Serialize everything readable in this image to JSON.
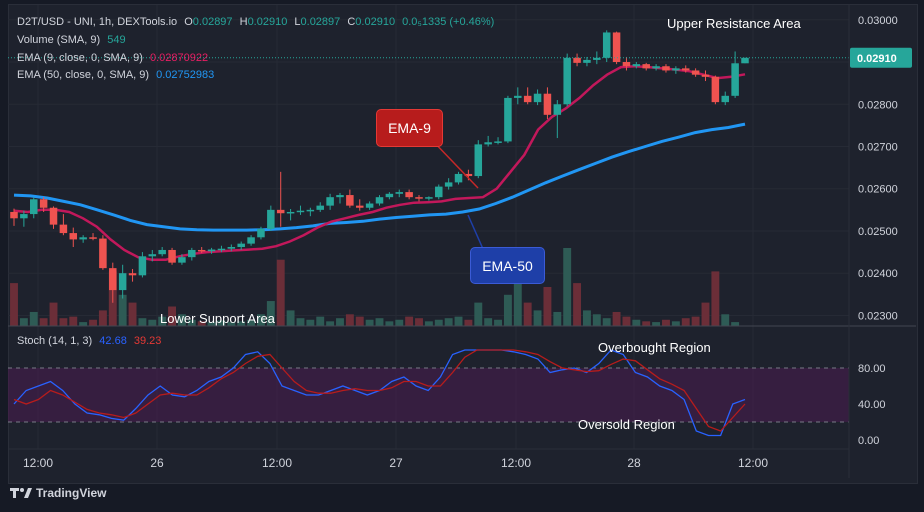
{
  "header": {
    "symbol": "D2T/USD - UNI, 1h, DEXTools.io",
    "o_label": "O",
    "o_value": "0.02897",
    "h_label": "H",
    "h_value": "0.02910",
    "l_label": "L",
    "l_value": "0.02897",
    "c_label": "C",
    "c_value": "0.02910",
    "change": "0.0₅1335 (+0.46%)"
  },
  "indicators": {
    "volume_label": "Volume (SMA, 9)",
    "volume_value": "549",
    "ema9_label": "EMA (9, close, 0, SMA, 9)",
    "ema9_value": "0.02870922",
    "ema50_label": "EMA (50, close, 0, SMA, 9)",
    "ema50_value": "0.02752983",
    "stoch_label": "Stoch (14, 1, 3)",
    "stoch_k": "42.68",
    "stoch_d": "39.23"
  },
  "annotations": {
    "upper": "Upper Resistance Area",
    "lower": "Lower Support Area",
    "ema9_tag": "EMA-9",
    "ema50_tag": "EMA-50",
    "overbought": "Overbought Region",
    "oversold": "Oversold Region"
  },
  "price_axis": [
    "0.03000",
    "0.02900",
    "0.02800",
    "0.02700",
    "0.02600",
    "0.02500",
    "0.02400",
    "0.02300"
  ],
  "price_badge": "0.02910",
  "stoch_axis": [
    "80.00",
    "40.00",
    "0.00"
  ],
  "time_axis": [
    "12:00",
    "26",
    "12:00",
    "27",
    "12:00",
    "28",
    "12:00"
  ],
  "brand": "TradingView",
  "colors": {
    "up": "#26a69a",
    "down": "#ef5350",
    "ema9": "#c2185b",
    "ema50": "#2196f3",
    "stoch_k": "#2962ff",
    "stoch_d": "#b71c1c",
    "badge": "#26a69a",
    "tag_red": "#b71c1c",
    "tag_blue": "#1e3fa8"
  },
  "chart_data": {
    "type": "candlestick",
    "timeframe": "1h",
    "ylim": [
      0.02275,
      0.03035
    ],
    "candles": [
      [
        0.02545,
        0.02553,
        0.02512,
        0.0253
      ],
      [
        0.0253,
        0.02548,
        0.0251,
        0.0254
      ],
      [
        0.0254,
        0.0258,
        0.0253,
        0.02575
      ],
      [
        0.02575,
        0.0258,
        0.02545,
        0.02555
      ],
      [
        0.02555,
        0.02558,
        0.02505,
        0.02515
      ],
      [
        0.02515,
        0.0254,
        0.0249,
        0.02495
      ],
      [
        0.02495,
        0.02508,
        0.02462,
        0.0248
      ],
      [
        0.0248,
        0.0249,
        0.02472,
        0.02485
      ],
      [
        0.02485,
        0.02495,
        0.02478,
        0.02482
      ],
      [
        0.02482,
        0.0249,
        0.02408,
        0.02412
      ],
      [
        0.02412,
        0.02425,
        0.0233,
        0.0236
      ],
      [
        0.0236,
        0.0242,
        0.0234,
        0.024
      ],
      [
        0.024,
        0.0241,
        0.0238,
        0.02395
      ],
      [
        0.02395,
        0.0245,
        0.0239,
        0.0244
      ],
      [
        0.0244,
        0.02455,
        0.02428,
        0.02445
      ],
      [
        0.02445,
        0.02462,
        0.0244,
        0.02455
      ],
      [
        0.02455,
        0.0246,
        0.0242,
        0.02425
      ],
      [
        0.02425,
        0.02445,
        0.0242,
        0.02438
      ],
      [
        0.02438,
        0.0246,
        0.0243,
        0.02455
      ],
      [
        0.02455,
        0.02462,
        0.02448,
        0.02452
      ],
      [
        0.02452,
        0.0246,
        0.02446,
        0.02456
      ],
      [
        0.02456,
        0.02465,
        0.0245,
        0.02458
      ],
      [
        0.02458,
        0.02468,
        0.02452,
        0.02462
      ],
      [
        0.02462,
        0.02475,
        0.02455,
        0.0247
      ],
      [
        0.0247,
        0.0249,
        0.02465,
        0.02485
      ],
      [
        0.02485,
        0.0251,
        0.0248,
        0.02505
      ],
      [
        0.02505,
        0.0256,
        0.025,
        0.0255
      ],
      [
        0.0255,
        0.0264,
        0.0251,
        0.02542
      ],
      [
        0.02542,
        0.02552,
        0.02525,
        0.02545
      ],
      [
        0.02545,
        0.0256,
        0.02538,
        0.02548
      ],
      [
        0.02548,
        0.02555,
        0.02535,
        0.0255
      ],
      [
        0.0255,
        0.02568,
        0.02545,
        0.0256
      ],
      [
        0.0256,
        0.02588,
        0.0255,
        0.0258
      ],
      [
        0.0258,
        0.0259,
        0.02565,
        0.02585
      ],
      [
        0.02585,
        0.02598,
        0.02555,
        0.0256
      ],
      [
        0.0256,
        0.02575,
        0.02548,
        0.02555
      ],
      [
        0.02555,
        0.0257,
        0.0255,
        0.02565
      ],
      [
        0.02565,
        0.02585,
        0.0256,
        0.0258
      ],
      [
        0.0258,
        0.02592,
        0.02575,
        0.02588
      ],
      [
        0.02588,
        0.02598,
        0.0258,
        0.02592
      ],
      [
        0.02592,
        0.02598,
        0.02575,
        0.0258
      ],
      [
        0.0258,
        0.02585,
        0.0257,
        0.02578
      ],
      [
        0.02578,
        0.02582,
        0.02572,
        0.0258
      ],
      [
        0.0258,
        0.0261,
        0.02575,
        0.02605
      ],
      [
        0.02605,
        0.02625,
        0.02598,
        0.02615
      ],
      [
        0.02615,
        0.0264,
        0.0261,
        0.02635
      ],
      [
        0.02635,
        0.02645,
        0.0262,
        0.0263
      ],
      [
        0.0263,
        0.02715,
        0.02625,
        0.02705
      ],
      [
        0.02705,
        0.02725,
        0.027,
        0.0271
      ],
      [
        0.0271,
        0.02722,
        0.02705,
        0.02712
      ],
      [
        0.02712,
        0.0282,
        0.02708,
        0.02815
      ],
      [
        0.02815,
        0.0284,
        0.028,
        0.0282
      ],
      [
        0.0282,
        0.0284,
        0.028,
        0.02805
      ],
      [
        0.02805,
        0.02835,
        0.02798,
        0.02825
      ],
      [
        0.02825,
        0.0284,
        0.02765,
        0.02775
      ],
      [
        0.02775,
        0.0281,
        0.0272,
        0.028
      ],
      [
        0.028,
        0.0292,
        0.02795,
        0.0291
      ],
      [
        0.0291,
        0.0292,
        0.0289,
        0.02898
      ],
      [
        0.02898,
        0.02912,
        0.0289,
        0.02905
      ],
      [
        0.02905,
        0.02925,
        0.02895,
        0.0291
      ],
      [
        0.0291,
        0.02975,
        0.029,
        0.0297
      ],
      [
        0.0297,
        0.02972,
        0.02895,
        0.029
      ],
      [
        0.029,
        0.02912,
        0.0288,
        0.0289
      ],
      [
        0.0289,
        0.029,
        0.02885,
        0.02895
      ],
      [
        0.02895,
        0.02898,
        0.0288,
        0.02885
      ],
      [
        0.02885,
        0.02895,
        0.0288,
        0.0289
      ],
      [
        0.0289,
        0.02895,
        0.02875,
        0.0288
      ],
      [
        0.0288,
        0.0289,
        0.02872,
        0.02885
      ],
      [
        0.02885,
        0.02892,
        0.02875,
        0.0288
      ],
      [
        0.0288,
        0.02885,
        0.02865,
        0.0287
      ],
      [
        0.0287,
        0.0288,
        0.02855,
        0.02865
      ],
      [
        0.02865,
        0.02868,
        0.028,
        0.02805
      ],
      [
        0.02805,
        0.0283,
        0.02798,
        0.0282
      ],
      [
        0.0282,
        0.02925,
        0.02815,
        0.02897
      ],
      [
        0.02897,
        0.0291,
        0.02897,
        0.0291
      ]
    ],
    "volume_relative": [
      0.55,
      0.1,
      0.18,
      0.1,
      0.3,
      0.1,
      0.12,
      0.05,
      0.08,
      0.2,
      0.7,
      0.4,
      0.3,
      0.1,
      0.08,
      0.12,
      0.25,
      0.15,
      0.08,
      0.06,
      0.05,
      0.07,
      0.05,
      0.06,
      0.08,
      0.15,
      0.32,
      0.85,
      0.2,
      0.1,
      0.08,
      0.12,
      0.06,
      0.1,
      0.15,
      0.12,
      0.08,
      0.1,
      0.06,
      0.08,
      0.12,
      0.1,
      0.06,
      0.08,
      0.1,
      0.12,
      0.08,
      0.3,
      0.1,
      0.08,
      0.4,
      0.55,
      0.3,
      0.2,
      0.5,
      0.18,
      1.0,
      0.55,
      0.2,
      0.15,
      0.1,
      0.18,
      0.12,
      0.08,
      0.06,
      0.05,
      0.08,
      0.06,
      0.1,
      0.12,
      0.3,
      0.7,
      0.15,
      0.05
    ],
    "ema9": [
      0.02548,
      0.02545,
      0.0255,
      0.0255,
      0.02545,
      0.0253,
      0.0251,
      0.0248,
      0.02455,
      0.02438,
      0.02432,
      0.02432,
      0.0244,
      0.02446,
      0.0245,
      0.02452,
      0.02454,
      0.02456,
      0.02458,
      0.02464,
      0.02475,
      0.0249,
      0.02508,
      0.02522,
      0.0253,
      0.02538,
      0.02545,
      0.02555,
      0.02562,
      0.02567,
      0.02568,
      0.0257,
      0.02576,
      0.02578,
      0.0258,
      0.026,
      0.0264,
      0.0268,
      0.0274,
      0.0277,
      0.0279,
      0.02815,
      0.02845,
      0.0287,
      0.02888,
      0.0289,
      0.02888,
      0.02885,
      0.02882,
      0.02878,
      0.0287,
      0.02862,
      0.02865,
      0.02871
    ],
    "ema50": [
      0.02585,
      0.02583,
      0.02578,
      0.0257,
      0.02562,
      0.0255,
      0.02538,
      0.02525,
      0.02515,
      0.0251,
      0.02505,
      0.02503,
      0.02502,
      0.02502,
      0.02502,
      0.02503,
      0.02505,
      0.02508,
      0.02512,
      0.02518,
      0.0252,
      0.02523,
      0.02528,
      0.02532,
      0.02535,
      0.02538,
      0.0254,
      0.02545,
      0.02552,
      0.02565,
      0.0258,
      0.02597,
      0.02614,
      0.0263,
      0.02645,
      0.0266,
      0.02675,
      0.02688,
      0.027,
      0.02712,
      0.02722,
      0.02733,
      0.0274,
      0.02745,
      0.02753
    ],
    "stoch_k": [
      40,
      55,
      60,
      65,
      55,
      40,
      30,
      28,
      24,
      22,
      35,
      50,
      60,
      50,
      48,
      55,
      65,
      70,
      80,
      95,
      98,
      85,
      60,
      55,
      50,
      50,
      55,
      60,
      55,
      50,
      55,
      65,
      70,
      60,
      55,
      70,
      95,
      100,
      100,
      100,
      100,
      98,
      95,
      90,
      75,
      78,
      80,
      75,
      85,
      100,
      95,
      75,
      70,
      60,
      55,
      45,
      10,
      5,
      5,
      40,
      45
    ],
    "stoch_d": [
      45,
      40,
      45,
      55,
      50,
      42,
      34,
      30,
      28,
      25,
      30,
      40,
      50,
      52,
      50,
      50,
      58,
      68,
      75,
      85,
      93,
      95,
      80,
      65,
      55,
      52,
      52,
      55,
      57,
      55,
      55,
      58,
      65,
      65,
      60,
      60,
      75,
      92,
      100,
      100,
      100,
      100,
      98,
      95,
      87,
      80,
      78,
      76,
      77,
      84,
      90,
      88,
      78,
      68,
      62,
      55,
      35,
      15,
      10,
      25,
      40
    ],
    "stoch_levels": [
      80,
      20
    ]
  }
}
